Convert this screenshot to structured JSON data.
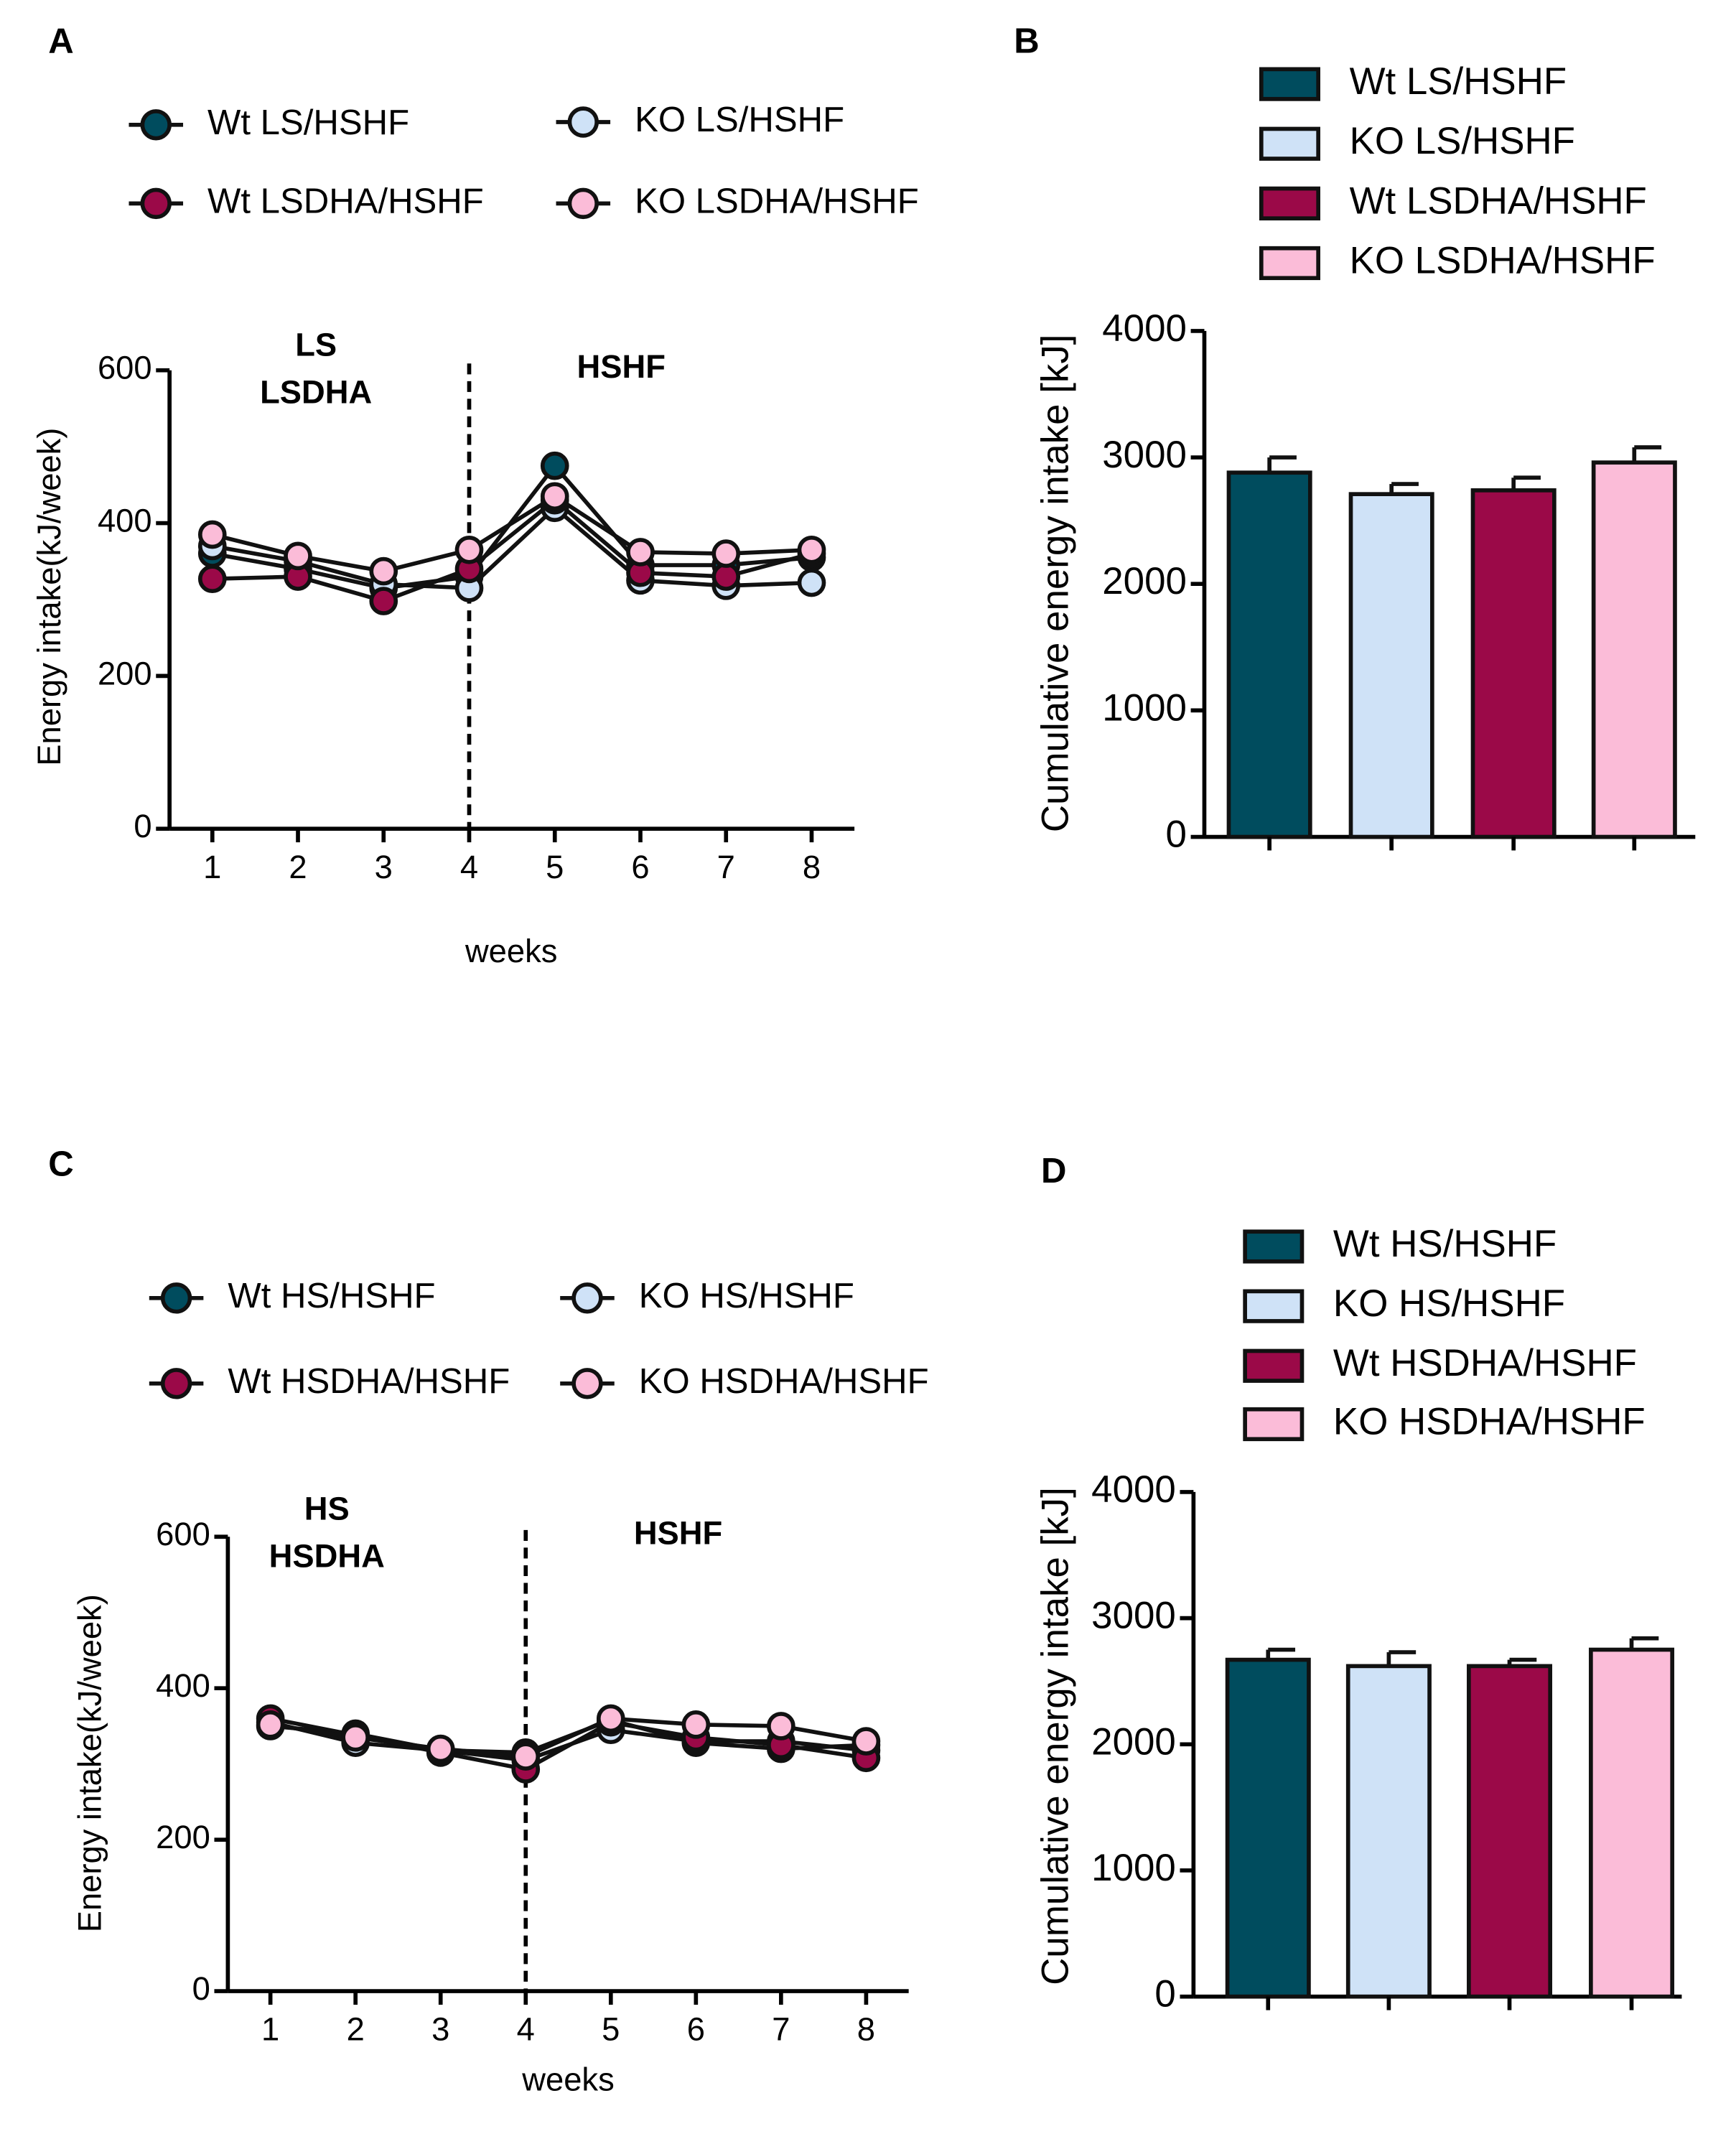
{
  "chart_data": [
    {
      "type": "line",
      "panel": "A",
      "ylabel": "Energy intake(kJ/week)",
      "xlabel": "weeks",
      "annotations": [
        "LS",
        "LSDHA",
        "HSHF"
      ],
      "vline": 4,
      "x": [
        1,
        2,
        3,
        4,
        5,
        6,
        7,
        8
      ],
      "xlim": [
        0.5,
        8.5
      ],
      "xticks": [
        1,
        2,
        3,
        4,
        5,
        6,
        7,
        8
      ],
      "ylim": [
        0,
        600
      ],
      "yticks": [
        0,
        200,
        400,
        600
      ],
      "series": [
        {
          "name": "Wt LS/HSHF",
          "color": "#004c5e",
          "values": [
            360,
            340,
            315,
            330,
            475,
            345,
            345,
            355
          ]
        },
        {
          "name": "KO  LS/HSHF",
          "color": "#cfe2f7",
          "values": [
            370,
            350,
            320,
            315,
            420,
            325,
            318,
            322
          ]
        },
        {
          "name": "Wt LSDHA/HSHF",
          "color": "#9b0948",
          "values": [
            327,
            330,
            298,
            340,
            430,
            335,
            330,
            360
          ]
        },
        {
          "name": "KO  LSDHA/HSHF",
          "color": "#fbbcd8",
          "values": [
            385,
            357,
            337,
            365,
            435,
            362,
            360,
            365
          ]
        }
      ]
    },
    {
      "type": "bar",
      "panel": "B",
      "ylabel": "Cumulative energy intake [kJ]",
      "ylim": [
        0,
        4000
      ],
      "yticks": [
        0,
        1000,
        2000,
        3000,
        4000
      ],
      "categories": [
        "Wt LS/HSHF",
        "KO  LS/HSHF",
        "Wt LSDHA/HSHF",
        "KO  LSDHA/HSHF"
      ],
      "colors": [
        "#004c5e",
        "#cfe2f7",
        "#9b0948",
        "#fbbcd8"
      ],
      "values": [
        2880,
        2710,
        2740,
        2960
      ],
      "errors": [
        120,
        80,
        100,
        120
      ]
    },
    {
      "type": "line",
      "panel": "C",
      "ylabel": "Energy intake(kJ/week)",
      "xlabel": "weeks",
      "annotations": [
        "HS",
        "HSDHA",
        "HSHF"
      ],
      "vline": 4,
      "x": [
        1,
        2,
        3,
        4,
        5,
        6,
        7,
        8
      ],
      "xlim": [
        0.5,
        8.5
      ],
      "xticks": [
        1,
        2,
        3,
        4,
        5,
        6,
        7,
        8
      ],
      "ylim": [
        0,
        600
      ],
      "yticks": [
        0,
        200,
        400,
        600
      ],
      "series": [
        {
          "name": "Wt HS/HSHF",
          "color": "#004c5e",
          "values": [
            350,
            340,
            318,
            315,
            358,
            328,
            320,
            325
          ]
        },
        {
          "name": "KO  HS/HSHF",
          "color": "#cfe2f7",
          "values": [
            355,
            328,
            318,
            305,
            345,
            330,
            330,
            318
          ]
        },
        {
          "name": "Wt HSDHA/HSHF",
          "color": "#9b0948",
          "values": [
            360,
            338,
            315,
            293,
            355,
            335,
            325,
            308
          ]
        },
        {
          "name": "KO  HSDHA/HSHF",
          "color": "#fbbcd8",
          "values": [
            352,
            335,
            320,
            310,
            360,
            352,
            350,
            330
          ]
        }
      ]
    },
    {
      "type": "bar",
      "panel": "D",
      "ylabel": "Cumulative energy intake [kJ]",
      "ylim": [
        0,
        4000
      ],
      "yticks": [
        0,
        1000,
        2000,
        3000,
        4000
      ],
      "categories": [
        "Wt HS/HSHF",
        "KO  HS/HSHF",
        "Wt HSDHA/HSHF",
        "KO  HSDHA/HSHF"
      ],
      "colors": [
        "#004c5e",
        "#cfe2f7",
        "#9b0948",
        "#fbbcd8"
      ],
      "values": [
        2670,
        2620,
        2620,
        2750
      ],
      "errors": [
        80,
        110,
        50,
        90
      ]
    }
  ]
}
